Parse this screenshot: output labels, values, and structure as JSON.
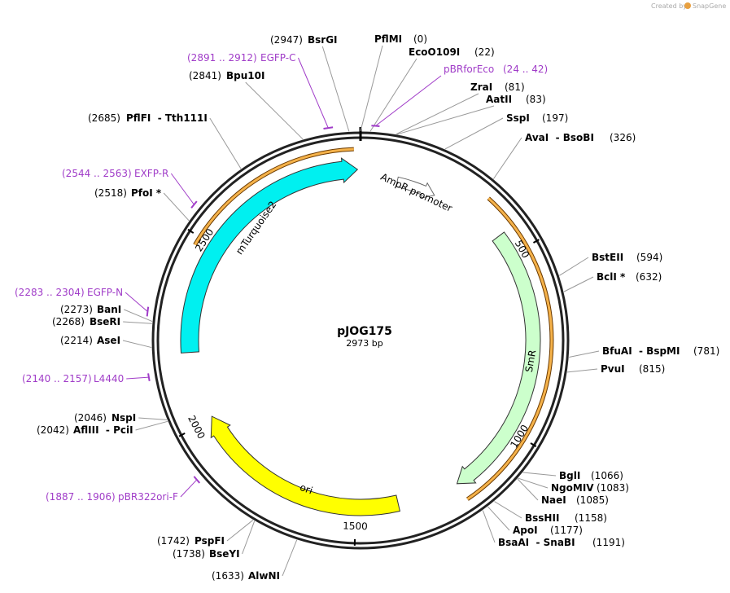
{
  "credit": {
    "prefix": "Created by",
    "brand": "SnapGene"
  },
  "plasmid": {
    "name": "pJOG175",
    "length": {
      "value": 2973,
      "label": "2973 bp"
    }
  },
  "ticks": [
    500,
    1000,
    1500,
    2000,
    2500
  ],
  "features": [
    {
      "name": "mTurquoise2"
    },
    {
      "name": "AmpR promoter"
    },
    {
      "name": "SmR"
    },
    {
      "name": "ori"
    }
  ],
  "enzymes": [
    {
      "name": "BsrGI",
      "site": {
        "value": 2947,
        "label": "(2947)"
      }
    },
    {
      "name": "PflMI",
      "site": {
        "value": 0,
        "label": "(0)"
      }
    },
    {
      "name": "EcoO109I",
      "site": {
        "value": 22,
        "label": "(22)"
      }
    },
    {
      "name": "Bpu10I",
      "site": {
        "value": 2841,
        "label": "(2841)"
      }
    },
    {
      "name": "ZraI",
      "site": {
        "value": 81,
        "label": "(81)"
      }
    },
    {
      "name": "AatII",
      "site": {
        "value": 83,
        "label": "(83)"
      }
    },
    {
      "name": "PflFI  - Tth111I",
      "site": {
        "value": 2685,
        "label": "(2685)"
      }
    },
    {
      "name": "SspI",
      "site": {
        "value": 197,
        "label": "(197)"
      }
    },
    {
      "name": "AvaI  - BsoBI",
      "site": {
        "value": 326,
        "label": "(326)"
      }
    },
    {
      "name": "PfoI *",
      "site": {
        "value": 2518,
        "label": "(2518)"
      }
    },
    {
      "name": "BstEII",
      "site": {
        "value": 594,
        "label": "(594)"
      }
    },
    {
      "name": "BclI *",
      "site": {
        "value": 632,
        "label": "(632)"
      }
    },
    {
      "name": "BanI",
      "site": {
        "value": 2273,
        "label": "(2273)"
      }
    },
    {
      "name": "BseRI",
      "site": {
        "value": 2268,
        "label": "(2268)"
      }
    },
    {
      "name": "AseI",
      "site": {
        "value": 2214,
        "label": "(2214)"
      }
    },
    {
      "name": "BfuAI  - BspMI",
      "site": {
        "value": 781,
        "label": "(781)"
      }
    },
    {
      "name": "PvuI",
      "site": {
        "value": 815,
        "label": "(815)"
      }
    },
    {
      "name": "NspI",
      "site": {
        "value": 2046,
        "label": "(2046)"
      }
    },
    {
      "name": "AflIII  - PciI",
      "site": {
        "value": 2042,
        "label": "(2042)"
      }
    },
    {
      "name": "BglI",
      "site": {
        "value": 1066,
        "label": "(1066)"
      }
    },
    {
      "name": "NgoMIV",
      "site": {
        "value": 1083,
        "label": "(1083)"
      }
    },
    {
      "name": "NaeI",
      "site": {
        "value": 1085,
        "label": "(1085)"
      }
    },
    {
      "name": "BssHII",
      "site": {
        "value": 1158,
        "label": "(1158)"
      }
    },
    {
      "name": "ApoI",
      "site": {
        "value": 1177,
        "label": "(1177)"
      }
    },
    {
      "name": "BsaAI  - SnaBI",
      "site": {
        "value": 1191,
        "label": "(1191)"
      }
    },
    {
      "name": "PspFI",
      "site": {
        "value": 1742,
        "label": "(1742)"
      }
    },
    {
      "name": "BseYI",
      "site": {
        "value": 1738,
        "label": "(1738)"
      }
    },
    {
      "name": "AlwNI",
      "site": {
        "value": 1633,
        "label": "(1633)"
      }
    }
  ],
  "primers": [
    {
      "name": "EGFP-C",
      "span": {
        "start": 2891,
        "end": 2912,
        "label": "(2891 .. 2912)"
      }
    },
    {
      "name": "pBRforEco",
      "span": {
        "start": 24,
        "end": 42,
        "label": "(24 .. 42)"
      }
    },
    {
      "name": "EXFP-R",
      "span": {
        "start": 2544,
        "end": 2563,
        "label": "(2544 .. 2563)"
      }
    },
    {
      "name": "EGFP-N",
      "span": {
        "start": 2283,
        "end": 2304,
        "label": "(2283 .. 2304)"
      }
    },
    {
      "name": "L4440",
      "span": {
        "start": 2140,
        "end": 2157,
        "label": "(2140 .. 2157)"
      }
    },
    {
      "name": "pBR322ori-F",
      "span": {
        "start": 1887,
        "end": 1906,
        "label": "(1887 .. 1906)"
      }
    }
  ]
}
